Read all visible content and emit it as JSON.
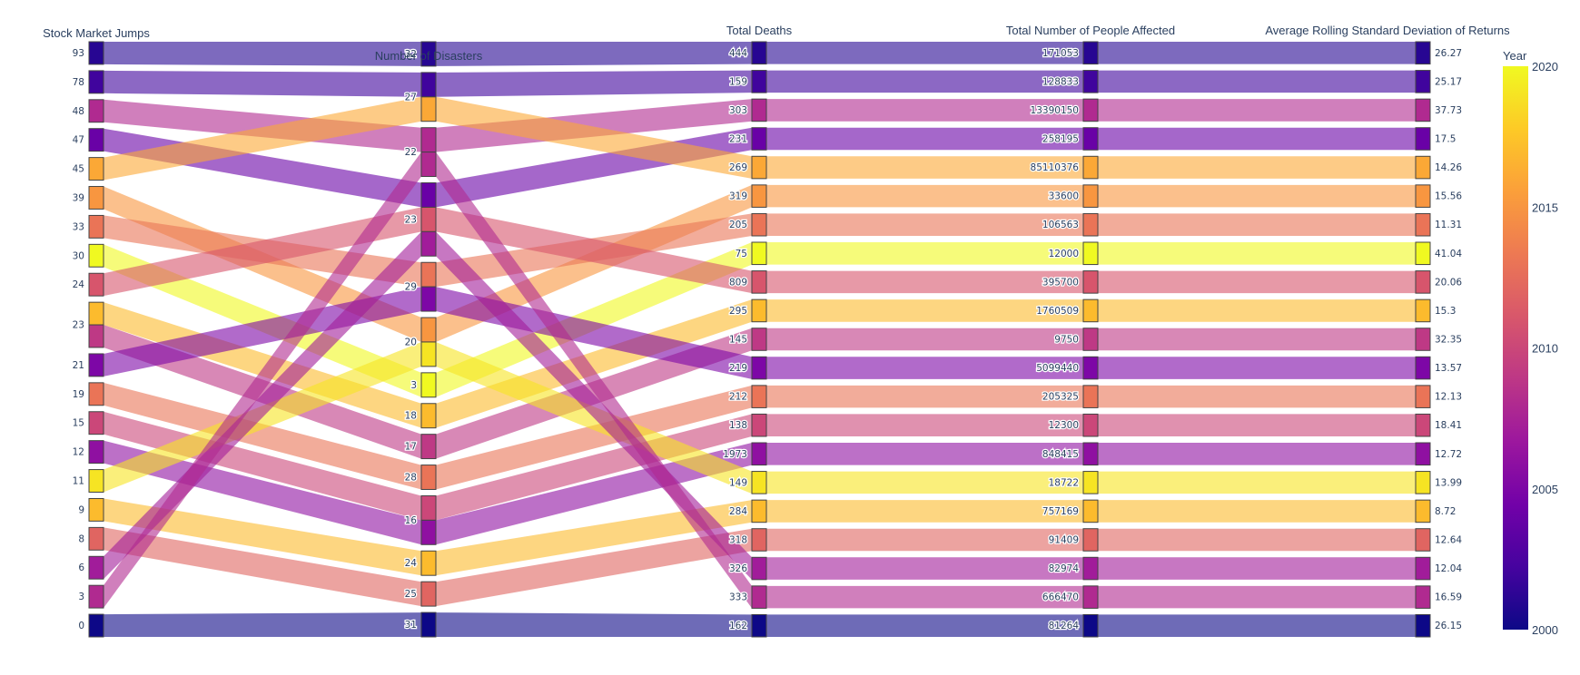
{
  "chart_data": {
    "type": "parallel_categories",
    "title": "",
    "colorbar": {
      "title": "Year",
      "min": 2000,
      "max": 2020,
      "ticks": [
        "2000",
        "2005",
        "2010",
        "2015",
        "2020"
      ],
      "colorscale": [
        "#0d0887",
        "#46039f",
        "#7201a8",
        "#9c179e",
        "#bd3786",
        "#d8576b",
        "#ed7953",
        "#fb9f3a",
        "#fdca26",
        "#f0f921"
      ]
    },
    "dimensions": [
      {
        "title": "Stock Market Jumps",
        "categories": [
          "93",
          "78",
          "48",
          "47",
          "45",
          "39",
          "33",
          "30",
          "24",
          "23",
          "21",
          "19",
          "15",
          "12",
          "11",
          "9",
          "8",
          "6",
          "3",
          "0"
        ]
      },
      {
        "title": "Number of Disasters",
        "categories": [
          "32",
          "27",
          "22",
          "23",
          "29",
          "20",
          "3",
          "18",
          "17",
          "28",
          "16",
          "24",
          "25",
          "31"
        ]
      },
      {
        "title": "Total Deaths",
        "categories": [
          "444",
          "159",
          "303",
          "231",
          "269",
          "319",
          "205",
          "75",
          "809",
          "295",
          "145",
          "219",
          "212",
          "138",
          "1973",
          "149",
          "284",
          "318",
          "326",
          "333",
          "162"
        ]
      },
      {
        "title": "Total Number of People Affected",
        "categories": [
          "171053",
          "128833",
          "13390150",
          "258195",
          "85110376",
          "33600",
          "106563",
          "12000",
          "395700",
          "1760509",
          "9750",
          "5099440",
          "205325",
          "12300",
          "848415",
          "18722",
          "757169",
          "91409",
          "82974",
          "666470",
          "81264"
        ]
      },
      {
        "title": "Average Rolling Standard Deviation of Returns",
        "categories": [
          "26.27",
          "25.17",
          "37.73",
          "17.5",
          "14.26",
          "15.56",
          "11.31",
          "41.04",
          "20.06",
          "15.3",
          "32.35",
          "13.57",
          "12.13",
          "18.41",
          "12.72",
          "13.99",
          "8.72",
          "12.64",
          "12.04",
          "16.59",
          "26.15"
        ]
      }
    ],
    "records": [
      {
        "year": 2001,
        "values": [
          "93",
          "32",
          "444",
          "171053",
          "26.27"
        ]
      },
      {
        "year": 2002,
        "values": [
          "78",
          "27",
          "159",
          "128833",
          "25.17"
        ]
      },
      {
        "year": 2008,
        "values": [
          "48",
          "22",
          "303",
          "13390150",
          "37.73"
        ]
      },
      {
        "year": 2004,
        "values": [
          "47",
          "23",
          "231",
          "258195",
          "17.5"
        ]
      },
      {
        "year": 2016,
        "values": [
          "45",
          "27",
          "269",
          "85110376",
          "14.26"
        ]
      },
      {
        "year": 2015,
        "values": [
          "39",
          "20",
          "319",
          "33600",
          "15.56"
        ]
      },
      {
        "year": 2013,
        "values": [
          "33",
          "29",
          "205",
          "106563",
          "11.31"
        ]
      },
      {
        "year": 2020,
        "values": [
          "30",
          "3",
          "75",
          "12000",
          "41.04"
        ]
      },
      {
        "year": 2011,
        "values": [
          "24",
          "23",
          "809",
          "395700",
          "20.06"
        ]
      },
      {
        "year": 2017,
        "values": [
          "23",
          "18",
          "295",
          "1760509",
          "15.3"
        ]
      },
      {
        "year": 2009,
        "values": [
          "23",
          "17",
          "145",
          "9750",
          "32.35"
        ]
      },
      {
        "year": 2005,
        "values": [
          "21",
          "29",
          "219",
          "5099440",
          "13.57"
        ]
      },
      {
        "year": 2013,
        "values": [
          "19",
          "28",
          "212",
          "205325",
          "12.13"
        ]
      },
      {
        "year": 2010,
        "values": [
          "15",
          "16",
          "138",
          "12300",
          "18.41"
        ]
      },
      {
        "year": 2006,
        "values": [
          "12",
          "16",
          "1973",
          "848415",
          "12.72"
        ]
      },
      {
        "year": 2019,
        "values": [
          "11",
          "20",
          "149",
          "18722",
          "13.99"
        ]
      },
      {
        "year": 2017,
        "values": [
          "9",
          "24",
          "284",
          "757169",
          "8.72"
        ]
      },
      {
        "year": 2012,
        "values": [
          "8",
          "25",
          "318",
          "91409",
          "12.64"
        ]
      },
      {
        "year": 2007,
        "values": [
          "6",
          "23",
          "326",
          "82974",
          "12.04"
        ]
      },
      {
        "year": 2008,
        "values": [
          "3",
          "22",
          "333",
          "666470",
          "16.59"
        ]
      },
      {
        "year": 2000,
        "values": [
          "0",
          "31",
          "162",
          "81264",
          "26.15"
        ]
      }
    ]
  }
}
